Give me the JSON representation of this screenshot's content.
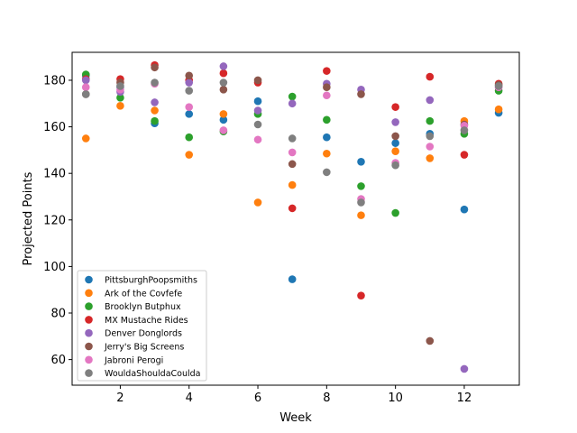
{
  "chart_data": {
    "type": "scatter",
    "title": "",
    "xlabel": "Week",
    "ylabel": "Projected Points",
    "xlim": [
      0.6,
      13.6
    ],
    "ylim": [
      49,
      192
    ],
    "xticks": [
      2,
      4,
      6,
      8,
      10,
      12
    ],
    "yticks": [
      60,
      80,
      100,
      120,
      140,
      160,
      180
    ],
    "grid": false,
    "legend_position": "lower-left",
    "x": [
      1,
      2,
      3,
      4,
      5,
      6,
      7,
      8,
      9,
      10,
      11,
      12,
      13
    ],
    "series": [
      {
        "name": "PittsburghPoopsmiths",
        "color": "#1f77b4",
        "y": [
          182,
          177,
          161.5,
          165.5,
          163,
          171,
          94.5,
          155.5,
          145,
          153,
          157,
          124.5,
          166
        ]
      },
      {
        "name": "Ark of the Covfefe",
        "color": "#ff7f0e",
        "y": [
          155,
          169,
          167,
          148,
          165.5,
          127.5,
          135,
          148.5,
          122,
          149.5,
          146.5,
          162.5,
          167.5
        ]
      },
      {
        "name": "Brooklyn Butphux",
        "color": "#2ca02c",
        "y": [
          182.5,
          172.5,
          162.5,
          155.5,
          158,
          165.5,
          173,
          163,
          134.5,
          123,
          162.5,
          157,
          175.5
        ]
      },
      {
        "name": "MX Mustache Rides",
        "color": "#d62728",
        "y": [
          180.5,
          180.5,
          186.5,
          180,
          183,
          179,
          125,
          184,
          87.5,
          168.5,
          181.5,
          148,
          178.5
        ]
      },
      {
        "name": "Denver Donglords",
        "color": "#9467bd",
        "y": [
          180,
          175,
          170.5,
          179,
          186,
          167,
          170,
          178.5,
          176,
          162,
          171.5,
          56,
          177
        ]
      },
      {
        "name": "Jerry's Big Screens",
        "color": "#8c564b",
        "y": [
          174,
          179,
          185.5,
          182,
          176,
          180,
          144,
          177,
          174,
          156,
          68,
          161,
          178
        ]
      },
      {
        "name": "Jabroni Perogi",
        "color": "#e377c2",
        "y": [
          177,
          176,
          178.5,
          168.5,
          158.5,
          154.5,
          149,
          173.5,
          129,
          144.5,
          151.5,
          160.5,
          177
        ]
      },
      {
        "name": "WouldaShouldaCoulda",
        "color": "#7f7f7f",
        "y": [
          174,
          177.5,
          179,
          175.5,
          179,
          161,
          155,
          140.5,
          127.5,
          143.5,
          156,
          158.5,
          177.5
        ]
      }
    ]
  }
}
